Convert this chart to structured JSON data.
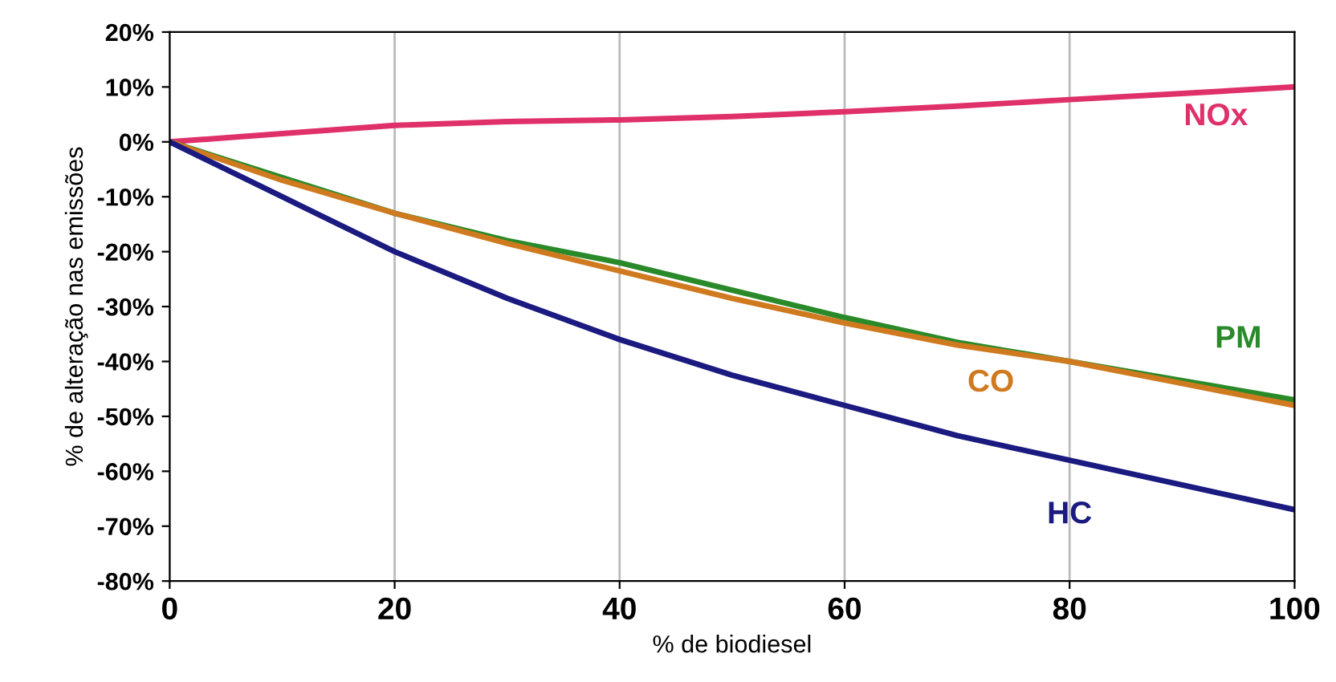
{
  "chart_data": {
    "type": "line",
    "xlabel": "% de biodiesel",
    "ylabel": "% de alteração nas emissões",
    "x": [
      0,
      10,
      20,
      30,
      40,
      50,
      60,
      70,
      80,
      90,
      100
    ],
    "series": [
      {
        "name": "NOx",
        "color": "#e0306a",
        "values": [
          0,
          1.5,
          3,
          3.7,
          4,
          4.6,
          5.5,
          6.5,
          7.7,
          8.8,
          10
        ]
      },
      {
        "name": "PM",
        "color": "#2a8a2a",
        "values": [
          0,
          -6.5,
          -13,
          -18,
          -22,
          -27,
          -32,
          -36.5,
          -40,
          -43.5,
          -47
        ]
      },
      {
        "name": "CO",
        "color": "#d07a20",
        "values": [
          0,
          -7,
          -13,
          -18.5,
          -23.5,
          -28.5,
          -33,
          -37,
          -40,
          -44,
          -48
        ]
      },
      {
        "name": "HC",
        "color": "#1a1a80",
        "values": [
          0,
          -10,
          -20,
          -28.5,
          -36,
          -42.5,
          -48,
          -53.5,
          -58,
          -62.5,
          -67
        ]
      }
    ],
    "xlim": [
      0,
      100
    ],
    "ylim": [
      -80,
      20
    ],
    "xticks": [
      0,
      20,
      40,
      60,
      80,
      100
    ],
    "yticks": [
      {
        "value": -80,
        "label": "-80%"
      },
      {
        "value": -70,
        "label": "-70%"
      },
      {
        "value": -60,
        "label": "-60%"
      },
      {
        "value": -50,
        "label": "-50%"
      },
      {
        "value": -40,
        "label": "-40%"
      },
      {
        "value": -30,
        "label": "-30%"
      },
      {
        "value": -20,
        "label": "-20%"
      },
      {
        "value": -10,
        "label": "-10%"
      },
      {
        "value": 0,
        "label": "0%"
      },
      {
        "value": 10,
        "label": "10%"
      },
      {
        "value": 20,
        "label": "20%"
      }
    ],
    "grid": "x",
    "legend": false,
    "marker": "none",
    "line_style": "solid"
  }
}
